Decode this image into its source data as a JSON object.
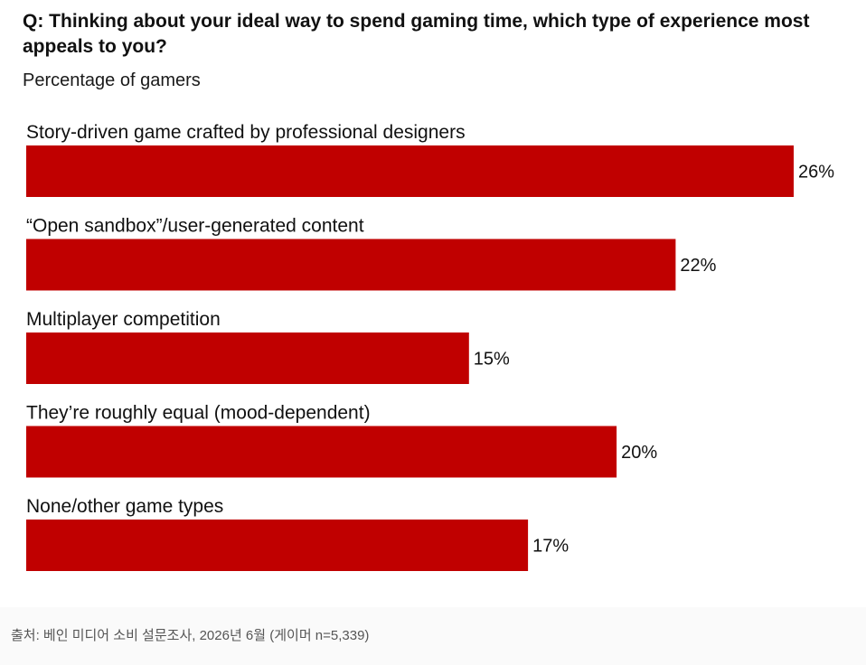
{
  "header": {
    "title": "Q: Thinking about your ideal way to spend gaming time, which type of experience most appeals to you?",
    "subtitle": "Percentage of gamers"
  },
  "footer": {
    "source": "출처: 베인 미디어 소비 설문조사, 2026년 6월 (게이머 n=5,339)"
  },
  "colors": {
    "bar": "#c00000",
    "text": "#111111"
  },
  "chart_data": {
    "type": "bar",
    "orientation": "horizontal",
    "categories": [
      "Story-driven game crafted by professional designers",
      "“Open sandbox”/user-generated content",
      "Multiplayer competition",
      "They’re roughly equal (mood-dependent)",
      "None/other game types"
    ],
    "values": [
      26,
      22,
      15,
      20,
      17
    ],
    "value_labels": [
      "26%",
      "22%",
      "15%",
      "20%",
      "17%"
    ],
    "unit": "%",
    "xlim": [
      0,
      26
    ],
    "grid": false,
    "legend": "none"
  }
}
